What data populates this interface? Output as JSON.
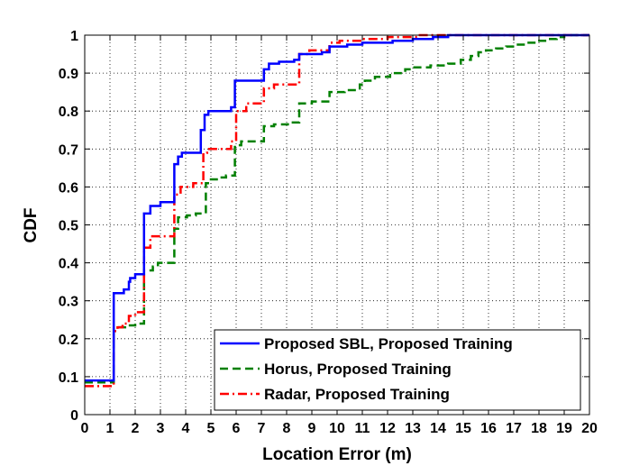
{
  "chart_data": {
    "type": "line",
    "xlabel": "Location Error (m)",
    "ylabel": "CDF",
    "xlim": [
      0,
      20
    ],
    "ylim": [
      0,
      1
    ],
    "xticks": [
      "0",
      "1",
      "2",
      "3",
      "4",
      "5",
      "6",
      "7",
      "8",
      "9",
      "10",
      "11",
      "12",
      "13",
      "14",
      "15",
      "16",
      "17",
      "18",
      "19",
      "20"
    ],
    "yticks": [
      "0",
      "0.1",
      "0.2",
      "0.3",
      "0.4",
      "0.5",
      "0.6",
      "0.7",
      "0.8",
      "0.9",
      "1"
    ],
    "grid": true,
    "legend_position": "bottom-right",
    "series": [
      {
        "name": "Proposed SBL, Proposed Training",
        "color": "#0000ff",
        "style": "solid",
        "points": [
          [
            0,
            0.09
          ],
          [
            1.15,
            0.09
          ],
          [
            1.15,
            0.32
          ],
          [
            1.55,
            0.32
          ],
          [
            1.55,
            0.33
          ],
          [
            1.75,
            0.33
          ],
          [
            1.75,
            0.35
          ],
          [
            1.8,
            0.35
          ],
          [
            1.8,
            0.36
          ],
          [
            2.0,
            0.36
          ],
          [
            2.0,
            0.37
          ],
          [
            2.35,
            0.37
          ],
          [
            2.35,
            0.53
          ],
          [
            2.6,
            0.53
          ],
          [
            2.6,
            0.55
          ],
          [
            3.0,
            0.55
          ],
          [
            3.0,
            0.56
          ],
          [
            3.55,
            0.56
          ],
          [
            3.55,
            0.66
          ],
          [
            3.7,
            0.66
          ],
          [
            3.7,
            0.68
          ],
          [
            3.85,
            0.68
          ],
          [
            3.85,
            0.69
          ],
          [
            4.6,
            0.69
          ],
          [
            4.6,
            0.75
          ],
          [
            4.75,
            0.75
          ],
          [
            4.75,
            0.79
          ],
          [
            4.9,
            0.79
          ],
          [
            4.9,
            0.8
          ],
          [
            5.8,
            0.8
          ],
          [
            5.8,
            0.81
          ],
          [
            5.95,
            0.81
          ],
          [
            5.95,
            0.88
          ],
          [
            7.1,
            0.88
          ],
          [
            7.1,
            0.91
          ],
          [
            7.3,
            0.91
          ],
          [
            7.3,
            0.925
          ],
          [
            7.7,
            0.925
          ],
          [
            7.7,
            0.93
          ],
          [
            8.3,
            0.93
          ],
          [
            8.3,
            0.935
          ],
          [
            8.5,
            0.935
          ],
          [
            8.5,
            0.95
          ],
          [
            9.4,
            0.95
          ],
          [
            9.4,
            0.955
          ],
          [
            9.7,
            0.955
          ],
          [
            9.7,
            0.97
          ],
          [
            10.4,
            0.97
          ],
          [
            10.4,
            0.975
          ],
          [
            11.0,
            0.975
          ],
          [
            11.0,
            0.98
          ],
          [
            12.2,
            0.98
          ],
          [
            12.2,
            0.985
          ],
          [
            13.0,
            0.985
          ],
          [
            13.0,
            0.99
          ],
          [
            13.8,
            0.99
          ],
          [
            13.8,
            0.995
          ],
          [
            14.4,
            0.995
          ],
          [
            14.4,
            1.0
          ],
          [
            20,
            1.0
          ]
        ]
      },
      {
        "name": "Horus, Proposed Training",
        "color": "#008000",
        "style": "dashed",
        "points": [
          [
            0,
            0.085
          ],
          [
            1.15,
            0.085
          ],
          [
            1.15,
            0.23
          ],
          [
            1.6,
            0.23
          ],
          [
            1.6,
            0.235
          ],
          [
            2.0,
            0.235
          ],
          [
            2.0,
            0.24
          ],
          [
            2.35,
            0.24
          ],
          [
            2.35,
            0.38
          ],
          [
            2.7,
            0.38
          ],
          [
            2.7,
            0.39
          ],
          [
            2.9,
            0.39
          ],
          [
            2.9,
            0.4
          ],
          [
            3.55,
            0.4
          ],
          [
            3.55,
            0.49
          ],
          [
            3.7,
            0.49
          ],
          [
            3.7,
            0.52
          ],
          [
            4.05,
            0.52
          ],
          [
            4.05,
            0.525
          ],
          [
            4.4,
            0.525
          ],
          [
            4.4,
            0.53
          ],
          [
            4.8,
            0.53
          ],
          [
            4.8,
            0.61
          ],
          [
            5.0,
            0.61
          ],
          [
            5.0,
            0.62
          ],
          [
            5.3,
            0.62
          ],
          [
            5.3,
            0.625
          ],
          [
            5.6,
            0.625
          ],
          [
            5.6,
            0.63
          ],
          [
            5.95,
            0.63
          ],
          [
            5.95,
            0.71
          ],
          [
            6.2,
            0.71
          ],
          [
            6.2,
            0.72
          ],
          [
            7.1,
            0.72
          ],
          [
            7.1,
            0.76
          ],
          [
            7.5,
            0.76
          ],
          [
            7.5,
            0.765
          ],
          [
            8.05,
            0.765
          ],
          [
            8.05,
            0.77
          ],
          [
            8.5,
            0.77
          ],
          [
            8.5,
            0.82
          ],
          [
            9.0,
            0.82
          ],
          [
            9.0,
            0.825
          ],
          [
            9.7,
            0.825
          ],
          [
            9.7,
            0.85
          ],
          [
            10.3,
            0.85
          ],
          [
            10.3,
            0.855
          ],
          [
            10.9,
            0.855
          ],
          [
            10.9,
            0.87
          ],
          [
            11.1,
            0.87
          ],
          [
            11.1,
            0.88
          ],
          [
            11.5,
            0.88
          ],
          [
            11.5,
            0.89
          ],
          [
            12.1,
            0.89
          ],
          [
            12.1,
            0.9
          ],
          [
            12.7,
            0.9
          ],
          [
            12.7,
            0.91
          ],
          [
            13.0,
            0.91
          ],
          [
            13.0,
            0.915
          ],
          [
            13.7,
            0.915
          ],
          [
            13.7,
            0.92
          ],
          [
            14.4,
            0.92
          ],
          [
            14.4,
            0.925
          ],
          [
            14.9,
            0.925
          ],
          [
            14.9,
            0.935
          ],
          [
            15.3,
            0.935
          ],
          [
            15.3,
            0.945
          ],
          [
            15.6,
            0.945
          ],
          [
            15.6,
            0.955
          ],
          [
            15.9,
            0.955
          ],
          [
            15.9,
            0.96
          ],
          [
            16.3,
            0.96
          ],
          [
            16.3,
            0.965
          ],
          [
            16.7,
            0.965
          ],
          [
            16.7,
            0.97
          ],
          [
            17.1,
            0.97
          ],
          [
            17.1,
            0.975
          ],
          [
            17.5,
            0.975
          ],
          [
            17.5,
            0.98
          ],
          [
            17.9,
            0.98
          ],
          [
            17.9,
            0.985
          ],
          [
            18.3,
            0.985
          ],
          [
            18.3,
            0.99
          ],
          [
            18.7,
            0.99
          ],
          [
            18.7,
            0.995
          ],
          [
            19.0,
            0.995
          ],
          [
            19.0,
            1.0
          ],
          [
            20,
            1.0
          ]
        ]
      },
      {
        "name": "Radar, Proposed Training",
        "color": "#ff0000",
        "style": "dashdot",
        "points": [
          [
            0,
            0.075
          ],
          [
            1.15,
            0.075
          ],
          [
            1.15,
            0.22
          ],
          [
            1.3,
            0.22
          ],
          [
            1.3,
            0.23
          ],
          [
            1.5,
            0.23
          ],
          [
            1.5,
            0.24
          ],
          [
            1.75,
            0.24
          ],
          [
            1.75,
            0.26
          ],
          [
            2.0,
            0.26
          ],
          [
            2.0,
            0.27
          ],
          [
            2.35,
            0.27
          ],
          [
            2.35,
            0.44
          ],
          [
            2.6,
            0.44
          ],
          [
            2.6,
            0.47
          ],
          [
            3.55,
            0.47
          ],
          [
            3.55,
            0.58
          ],
          [
            3.8,
            0.58
          ],
          [
            3.8,
            0.6
          ],
          [
            4.3,
            0.6
          ],
          [
            4.3,
            0.61
          ],
          [
            4.7,
            0.61
          ],
          [
            4.7,
            0.69
          ],
          [
            4.85,
            0.69
          ],
          [
            4.85,
            0.7
          ],
          [
            5.8,
            0.7
          ],
          [
            5.8,
            0.72
          ],
          [
            6.0,
            0.72
          ],
          [
            6.0,
            0.8
          ],
          [
            6.4,
            0.8
          ],
          [
            6.4,
            0.82
          ],
          [
            7.1,
            0.82
          ],
          [
            7.1,
            0.86
          ],
          [
            7.5,
            0.86
          ],
          [
            7.5,
            0.87
          ],
          [
            8.5,
            0.87
          ],
          [
            8.5,
            0.95
          ],
          [
            8.9,
            0.95
          ],
          [
            8.9,
            0.96
          ],
          [
            9.7,
            0.96
          ],
          [
            9.7,
            0.98
          ],
          [
            10.1,
            0.98
          ],
          [
            10.1,
            0.985
          ],
          [
            11.0,
            0.985
          ],
          [
            11.0,
            0.99
          ],
          [
            12.0,
            0.99
          ],
          [
            12.0,
            0.995
          ],
          [
            13.2,
            0.995
          ],
          [
            13.2,
            1.0
          ],
          [
            20,
            1.0
          ]
        ]
      }
    ]
  }
}
